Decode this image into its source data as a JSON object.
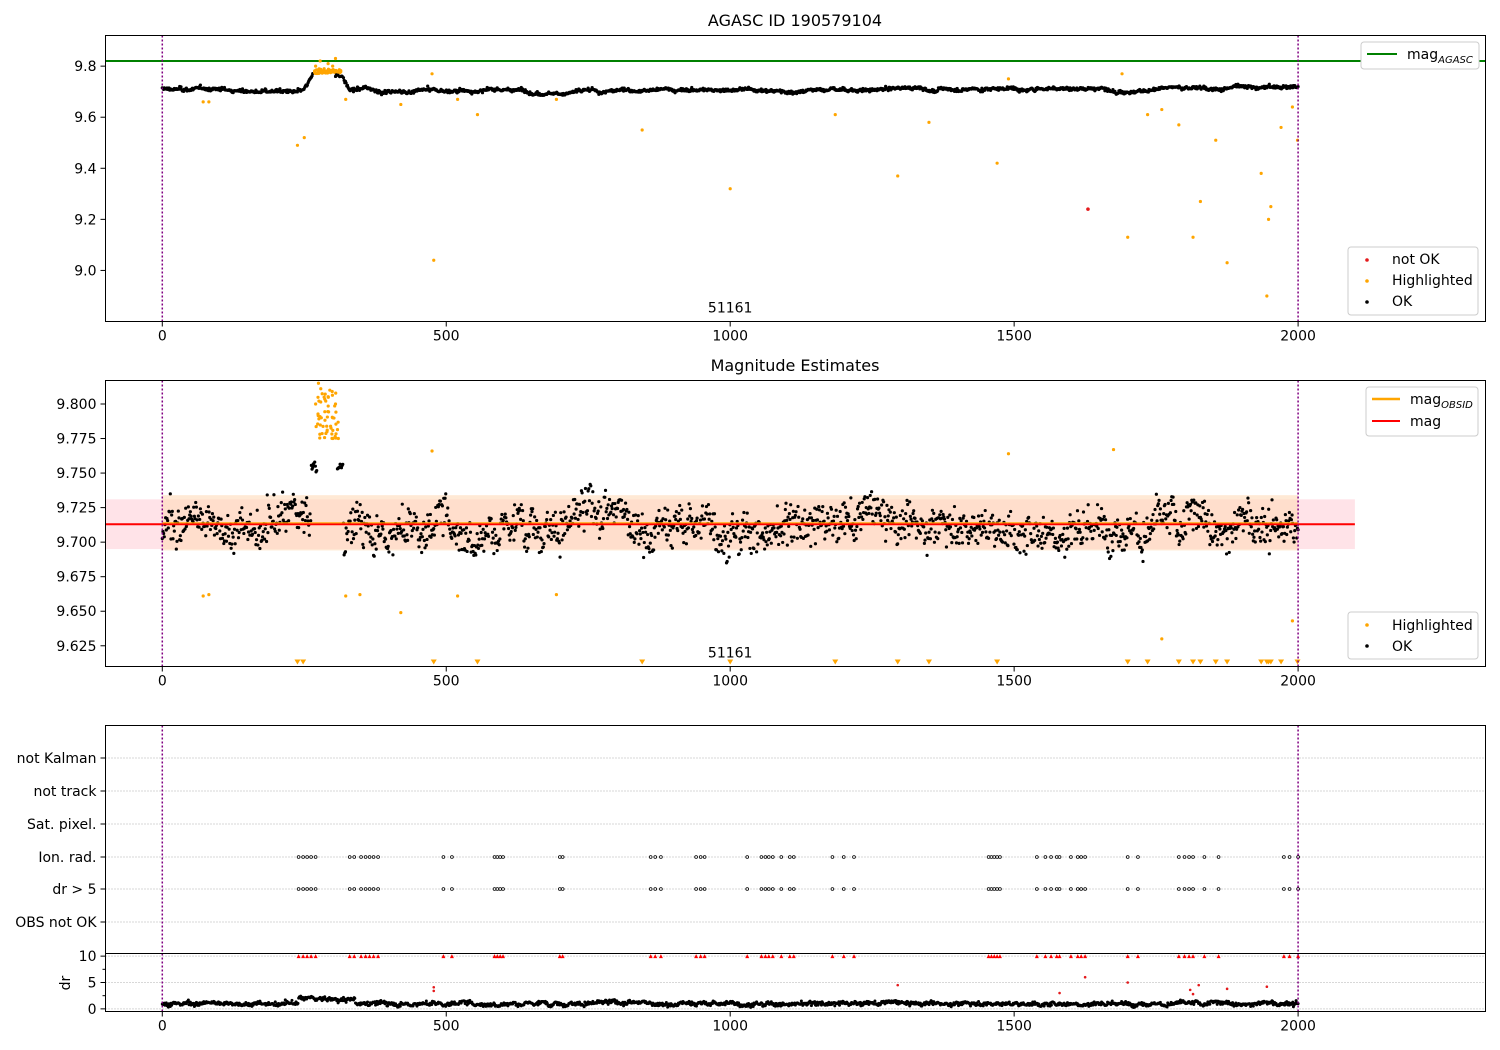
{
  "colors": {
    "ok": "#000000",
    "not_ok": "#e41a1c",
    "highlighted": "#ffa500",
    "mag_agasc": "#008000",
    "mag_obsid": "#ffa500",
    "mag": "#ff0000",
    "band_pink": "#ffc0cb",
    "band_orange": "#ffdab9",
    "vline": "#800080",
    "grid": "#b0b0b0",
    "flag_marker": "#ff0000"
  },
  "chart_data": [
    {
      "type": "scatter",
      "title": "AGASC ID 190579104",
      "xlim": [
        -100,
        2330
      ],
      "ylim": [
        8.8,
        9.92
      ],
      "xticks": [
        0,
        500,
        1000,
        1500,
        2000
      ],
      "yticks": [
        9.0,
        9.2,
        9.4,
        9.6,
        9.8
      ],
      "ytick_labels": [
        "9.0",
        "9.2",
        "9.4",
        "9.6",
        "9.8"
      ],
      "obsid_boundaries": [
        0,
        2000
      ],
      "obsid_label": "51161",
      "obsid_label_x": 1000,
      "hline": {
        "name": "mag_AGASC",
        "y": 9.82
      },
      "legend_location": "upper right",
      "legend": [
        {
          "label": "mag",
          "sub": "AGASC",
          "kind": "line",
          "color": "mag_agasc"
        }
      ],
      "legend_lower_right": [
        {
          "label": "not OK",
          "kind": "dot",
          "color": "not_ok"
        },
        {
          "label": "Highlighted",
          "kind": "dot",
          "color": "highlighted"
        },
        {
          "label": "OK",
          "kind": "dot",
          "color": "ok"
        }
      ],
      "ok_series": {
        "x_start": 0,
        "x_end": 2000,
        "n": 1700,
        "baseline_segments": [
          {
            "x": [
              0,
              250
            ],
            "y": [
              9.71,
              9.7
            ]
          },
          {
            "x": [
              250,
              270
            ],
            "y": [
              9.7,
              9.78
            ]
          },
          {
            "x": [
              270,
              315
            ],
            "y": [
              9.79,
              9.78
            ]
          },
          {
            "x": [
              315,
              330
            ],
            "y": [
              9.76,
              9.7
            ]
          },
          {
            "x": [
              330,
              2000
            ],
            "y": [
              9.7,
              9.72
            ]
          }
        ],
        "spread": 0.012
      },
      "not_ok_points": [
        {
          "x": 1630,
          "y": 9.24
        }
      ],
      "highlighted_points": [
        [
          72,
          9.66
        ],
        [
          82,
          9.66
        ],
        [
          238,
          9.49
        ],
        [
          250,
          9.52
        ],
        [
          270,
          9.8
        ],
        [
          278,
          9.82
        ],
        [
          285,
          9.79
        ],
        [
          292,
          9.81
        ],
        [
          300,
          9.8
        ],
        [
          305,
          9.83
        ],
        [
          323,
          9.67
        ],
        [
          420,
          9.65
        ],
        [
          475,
          9.77
        ],
        [
          478,
          9.04
        ],
        [
          520,
          9.67
        ],
        [
          555,
          9.61
        ],
        [
          694,
          9.67
        ],
        [
          845,
          9.55
        ],
        [
          1000,
          9.32
        ],
        [
          1185,
          9.61
        ],
        [
          1295,
          9.37
        ],
        [
          1350,
          9.58
        ],
        [
          1470,
          9.42
        ],
        [
          1490,
          9.75
        ],
        [
          1690,
          9.77
        ],
        [
          1700,
          9.13
        ],
        [
          1735,
          9.61
        ],
        [
          1760,
          9.63
        ],
        [
          1790,
          9.57
        ],
        [
          1815,
          9.13
        ],
        [
          1828,
          9.27
        ],
        [
          1855,
          9.51
        ],
        [
          1875,
          9.03
        ],
        [
          1935,
          9.38
        ],
        [
          1945,
          8.9
        ],
        [
          1948,
          9.2
        ],
        [
          1952,
          9.25
        ],
        [
          1970,
          9.56
        ],
        [
          1990,
          9.64
        ],
        [
          1999,
          9.51
        ]
      ]
    },
    {
      "type": "scatter",
      "title": "Magnitude Estimates",
      "xlim": [
        -100,
        2330
      ],
      "ylim": [
        9.61,
        9.817
      ],
      "xticks": [
        0,
        500,
        1000,
        1500,
        2000
      ],
      "yticks": [
        9.625,
        9.65,
        9.675,
        9.7,
        9.725,
        9.75,
        9.775,
        9.8
      ],
      "ytick_labels": [
        "9.625",
        "9.650",
        "9.675",
        "9.700",
        "9.725",
        "9.750",
        "9.775",
        "9.800"
      ],
      "obsid_boundaries": [
        0,
        2000
      ],
      "obsid_label": "51161",
      "obsid_label_x": 1000,
      "mag": {
        "y": 9.713,
        "band": [
          9.695,
          9.731
        ],
        "x_range": [
          -100,
          2100
        ]
      },
      "mag_obsid": {
        "y": 9.714,
        "band": [
          9.694,
          9.734
        ],
        "x_range": [
          0,
          2000
        ]
      },
      "legend_location": "upper right",
      "legend": [
        {
          "label": "mag",
          "sub": "OBSID",
          "kind": "line",
          "color": "mag_obsid"
        },
        {
          "label": "mag",
          "sub": "",
          "kind": "line",
          "color": "mag"
        }
      ],
      "legend_lower_right": [
        {
          "label": "Highlighted",
          "kind": "dot",
          "color": "highlighted"
        },
        {
          "label": "OK",
          "kind": "dot",
          "color": "ok"
        }
      ],
      "ok_series": {
        "x_start": 0,
        "x_end": 2000,
        "n": 1700,
        "center": 9.712,
        "spread": 0.016
      },
      "highlighted_points": [
        [
          72,
          9.661
        ],
        [
          82,
          9.662
        ],
        [
          270,
          9.8
        ],
        [
          275,
          9.815
        ],
        [
          280,
          9.79
        ],
        [
          285,
          9.805
        ],
        [
          290,
          9.78
        ],
        [
          295,
          9.81
        ],
        [
          300,
          9.79
        ],
        [
          305,
          9.8
        ],
        [
          310,
          9.775
        ],
        [
          323,
          9.661
        ],
        [
          348,
          9.662
        ],
        [
          420,
          9.649
        ],
        [
          475,
          9.766
        ],
        [
          520,
          9.661
        ],
        [
          694,
          9.662
        ],
        [
          1490,
          9.764
        ],
        [
          1675,
          9.767
        ],
        [
          1760,
          9.63
        ],
        [
          1990,
          9.643
        ]
      ],
      "offscale_low_x": [
        238,
        248,
        478,
        555,
        845,
        1000,
        1185,
        1295,
        1350,
        1470,
        1700,
        1735,
        1790,
        1815,
        1828,
        1855,
        1875,
        1935,
        1945,
        1948,
        1952,
        1970,
        1999
      ]
    },
    {
      "type": "scatter",
      "title": "",
      "xlim": [
        -100,
        2330
      ],
      "xticks": [
        0,
        500,
        1000,
        1500,
        2000
      ],
      "obsid_boundaries": [
        0,
        2000
      ],
      "flag_rows": [
        "not Kalman",
        "not track",
        "Sat. pixel.",
        "Ion. rad.",
        "dr > 5",
        "OBS not OK"
      ],
      "flag_x": [
        240,
        248,
        255,
        262,
        270,
        330,
        338,
        350,
        358,
        365,
        372,
        380,
        495,
        510,
        585,
        590,
        595,
        600,
        700,
        705,
        860,
        868,
        878,
        940,
        948,
        955,
        1030,
        1055,
        1062,
        1068,
        1075,
        1090,
        1105,
        1112,
        1180,
        1200,
        1218,
        1455,
        1460,
        1465,
        1470,
        1475,
        1540,
        1555,
        1565,
        1575,
        1580,
        1600,
        1612,
        1618,
        1625,
        1700,
        1718,
        1790,
        1800,
        1808,
        1815,
        1835,
        1860,
        1975,
        1985,
        2000
      ],
      "dr_ylabel": "dr",
      "dr_yticks": [
        0,
        5,
        10
      ],
      "dr_ylim": [
        -0.5,
        10.5
      ],
      "dr_clip": 10,
      "dr_series": {
        "x_start": 0,
        "x_end": 2000,
        "n": 1700,
        "mean": 1.0,
        "spread": 0.6
      },
      "dr_highlight_points": [
        [
          478,
          3.4
        ],
        [
          478,
          4.1
        ],
        [
          1295,
          4.5
        ],
        [
          1580,
          3.0
        ],
        [
          1625,
          6.0
        ],
        [
          1700,
          5.0
        ],
        [
          1810,
          3.6
        ],
        [
          1815,
          2.8
        ],
        [
          1825,
          4.5
        ],
        [
          1875,
          3.8
        ],
        [
          1945,
          4.2
        ]
      ]
    }
  ]
}
